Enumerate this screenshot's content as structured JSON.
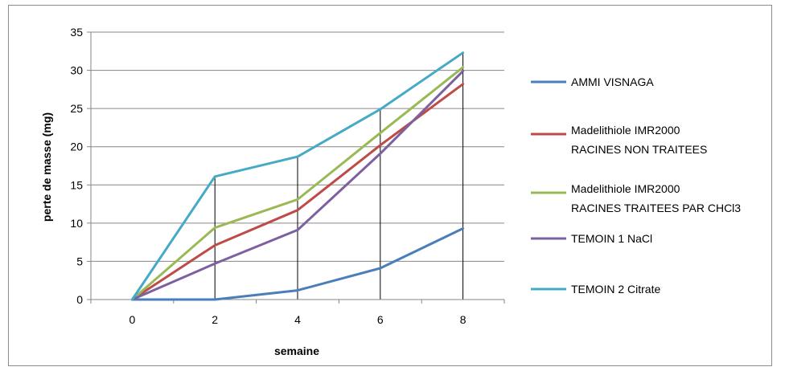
{
  "chart_data": {
    "type": "line",
    "x": [
      0,
      2,
      4,
      6,
      8
    ],
    "xlabel": "semaine",
    "ylabel": "perte de masse (mg)",
    "ylim": [
      0,
      35
    ],
    "yticks": [
      0,
      5,
      10,
      15,
      20,
      25,
      30,
      35
    ],
    "grid": "horizontal major gridlines; vertical drop lines at x = 2, 4, 6, 8",
    "legend_position": "right",
    "series": [
      {
        "name": "AMMI VISNAGA",
        "color": "#4a7ebb",
        "values": [
          0,
          0,
          1.2,
          4.1,
          9.3
        ]
      },
      {
        "name": "Madelithiole IMR2000 RACINES NON TRAITEES",
        "color": "#be4b48",
        "values": [
          0,
          7.1,
          11.7,
          20.2,
          28.2
        ]
      },
      {
        "name": "Madelithiole IMR2000 RACINES TRAITEES PAR CHCl3",
        "color": "#98b954",
        "values": [
          0,
          9.4,
          13.1,
          21.8,
          30.4
        ]
      },
      {
        "name": "TEMOIN 1 NaCl",
        "color": "#7d60a0",
        "values": [
          0,
          4.7,
          9.1,
          19.1,
          29.9
        ]
      },
      {
        "name": "TEMOIN 2 Citrate",
        "color": "#46aac5",
        "values": [
          0,
          16.1,
          18.7,
          24.9,
          32.3
        ]
      }
    ],
    "legend_lines": [
      [
        "AMMI VISNAGA"
      ],
      [
        "Madelithiole IMR2000",
        "RACINES NON TRAITEES"
      ],
      [
        "Madelithiole IMR2000",
        "RACINES TRAITEES PAR CHCl3"
      ],
      [
        "TEMOIN 1 NaCl"
      ],
      [
        "TEMOIN 2 Citrate"
      ]
    ]
  }
}
